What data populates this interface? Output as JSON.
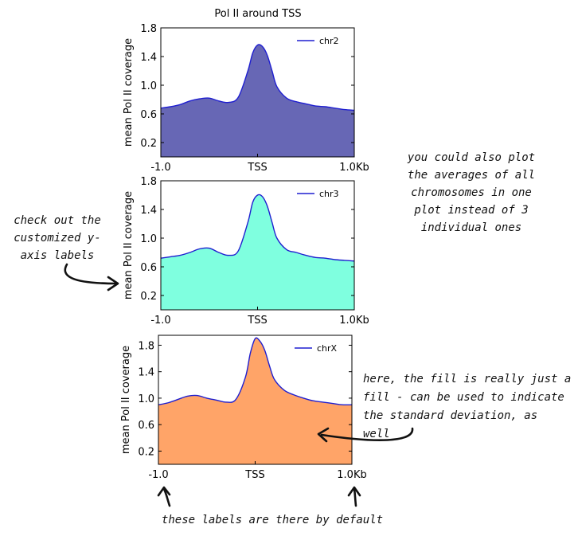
{
  "figure": {
    "title": "Pol II around TSS"
  },
  "colors": {
    "line": "#1f1fd0",
    "panel_fills": [
      "#6767b5",
      "#7fffdf",
      "#ffa468"
    ]
  },
  "annotations": {
    "top_right": [
      "you could also plot",
      "the averages of all",
      "chromosomes in one",
      "plot instead of 3",
      "individual ones"
    ],
    "left": [
      "check out the",
      "customized y-",
      "axis labels"
    ],
    "right_bottom": [
      "here, the fill is really just a",
      "fill - can be used to indicate",
      "the standard deviation, as",
      "well"
    ],
    "bottom": "these labels are there by default"
  },
  "chart_data": [
    {
      "type": "area",
      "series": [
        {
          "name": "chr2",
          "x": [
            -1.0,
            -0.9,
            -0.8,
            -0.7,
            -0.6,
            -0.5,
            -0.4,
            -0.3,
            -0.2,
            -0.1,
            -0.05,
            0.0,
            0.05,
            0.1,
            0.15,
            0.2,
            0.3,
            0.4,
            0.5,
            0.6,
            0.7,
            0.8,
            0.9,
            1.0
          ],
          "y": [
            0.68,
            0.7,
            0.73,
            0.78,
            0.81,
            0.82,
            0.78,
            0.76,
            0.83,
            1.2,
            1.45,
            1.56,
            1.54,
            1.42,
            1.2,
            0.98,
            0.82,
            0.77,
            0.74,
            0.71,
            0.7,
            0.68,
            0.66,
            0.65
          ]
        }
      ],
      "xticks": [
        "-1.0",
        "TSS",
        "1.0Kb"
      ],
      "yticks": [
        "0.2",
        "0.6",
        "1.0",
        "1.4",
        "1.8"
      ],
      "ylabel": "mean Pol II coverage",
      "ylim": [
        0.0,
        1.8
      ],
      "legend": "upper right"
    },
    {
      "type": "area",
      "series": [
        {
          "name": "chr3",
          "x": [
            -1.0,
            -0.9,
            -0.8,
            -0.7,
            -0.6,
            -0.5,
            -0.4,
            -0.3,
            -0.2,
            -0.1,
            -0.05,
            0.0,
            0.05,
            0.1,
            0.15,
            0.2,
            0.3,
            0.4,
            0.5,
            0.6,
            0.7,
            0.8,
            0.9,
            1.0
          ],
          "y": [
            0.72,
            0.74,
            0.76,
            0.8,
            0.85,
            0.86,
            0.8,
            0.76,
            0.82,
            1.22,
            1.5,
            1.6,
            1.58,
            1.45,
            1.22,
            1.0,
            0.84,
            0.8,
            0.76,
            0.73,
            0.72,
            0.7,
            0.69,
            0.68
          ]
        }
      ],
      "xticks": [
        "-1.0",
        "TSS",
        "1.0Kb"
      ],
      "yticks": [
        "0.2",
        "0.6",
        "1.0",
        "1.4",
        "1.8"
      ],
      "ylabel": "mean Pol II coverage",
      "ylim": [
        0.0,
        1.8
      ],
      "legend": "upper right"
    },
    {
      "type": "area",
      "series": [
        {
          "name": "chrX",
          "x": [
            -1.0,
            -0.9,
            -0.8,
            -0.7,
            -0.6,
            -0.5,
            -0.4,
            -0.3,
            -0.2,
            -0.1,
            -0.05,
            0.0,
            0.05,
            0.1,
            0.15,
            0.2,
            0.3,
            0.4,
            0.5,
            0.6,
            0.7,
            0.8,
            0.9,
            1.0
          ],
          "y": [
            0.9,
            0.93,
            0.98,
            1.03,
            1.04,
            1.0,
            0.97,
            0.94,
            0.98,
            1.32,
            1.68,
            1.9,
            1.86,
            1.72,
            1.48,
            1.28,
            1.12,
            1.05,
            1.0,
            0.96,
            0.94,
            0.92,
            0.9,
            0.9
          ]
        }
      ],
      "xticks": [
        "-1.0",
        "TSS",
        "1.0Kb"
      ],
      "yticks": [
        "0.2",
        "0.6",
        "1.0",
        "1.4",
        "1.8"
      ],
      "ylabel": "mean Pol II coverage",
      "ylim": [
        0.0,
        1.95
      ],
      "legend": "upper right"
    }
  ]
}
